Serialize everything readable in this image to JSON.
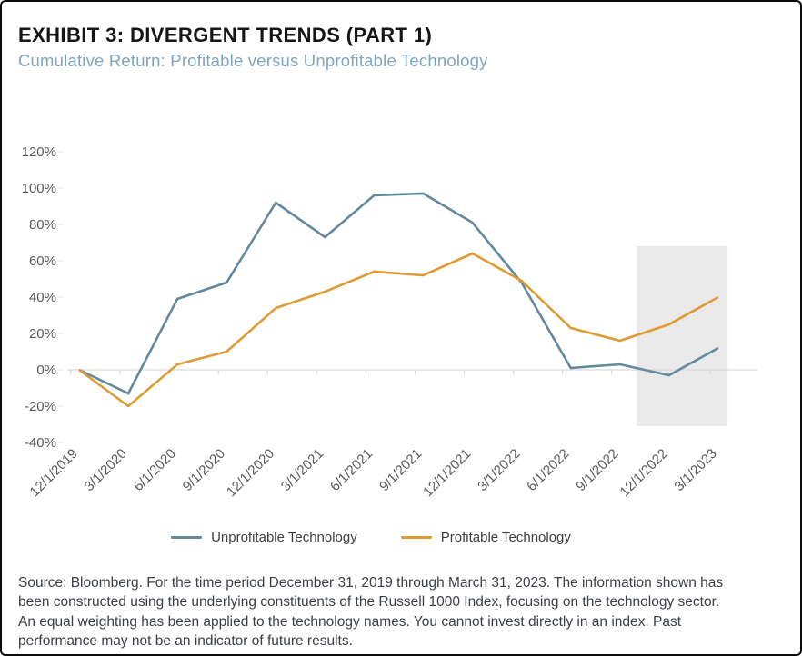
{
  "header": {
    "title": "EXHIBIT 3: DIVERGENT TRENDS (PART 1)",
    "subtitle": "Cumulative Return: Profitable versus Unprofitable Technology"
  },
  "colors": {
    "unprofitable": "#64889E",
    "profitable": "#DE9A33",
    "subtitle_accent": "#7FA5BC",
    "axis_line": "#D9D9D9",
    "tick_label": "#595959",
    "highlight_band": "#EBEAEA",
    "body_text": "#3A3F45"
  },
  "chart_data": {
    "type": "line",
    "title": "Cumulative Return: Profitable versus Unprofitable Technology",
    "xlabel": "",
    "ylabel": "",
    "categories": [
      "12/1/2019",
      "3/1/2020",
      "6/1/2020",
      "9/1/2020",
      "12/1/2020",
      "3/1/2021",
      "6/1/2021",
      "9/1/2021",
      "12/1/2021",
      "3/1/2022",
      "6/1/2022",
      "9/1/2022",
      "12/1/2022",
      "3/1/2023"
    ],
    "series": [
      {
        "name": "Unprofitable Technology",
        "color_key": "unprofitable",
        "values": [
          0,
          -13,
          39,
          48,
          92,
          73,
          96,
          97,
          81,
          48,
          1,
          3,
          -3,
          12
        ]
      },
      {
        "name": "Profitable Technology",
        "color_key": "profitable",
        "values": [
          0,
          -20,
          3,
          10,
          34,
          43,
          54,
          52,
          64,
          49,
          23,
          16,
          25,
          40
        ]
      }
    ],
    "y_tick_values": [
      120,
      100,
      80,
      60,
      40,
      20,
      0,
      -20,
      -40
    ],
    "y_tick_suffix": "%",
    "ylim": [
      -40,
      120
    ],
    "grid": "0%-baseline-only",
    "legend_position": "bottom-center",
    "highlight_region": {
      "start_x_index": 11.34,
      "end_x_index": 13.19,
      "top_value": 68,
      "bottom_value": -31
    }
  },
  "legend": {
    "items": [
      {
        "label": "Unprofitable Technology",
        "color_key": "unprofitable"
      },
      {
        "label": "Profitable Technology",
        "color_key": "profitable"
      }
    ]
  },
  "source_lines": [
    "Source: Bloomberg. For the time period December 31, 2019 through March 31, 2023.  The information shown has",
    "been constructed using the underlying constituents of the Russell 1000 Index, focusing on the technology sector.",
    "An equal weighting has been applied to the technology names. You cannot invest directly in an index. Past",
    "performance may not be an indicator of future results."
  ]
}
